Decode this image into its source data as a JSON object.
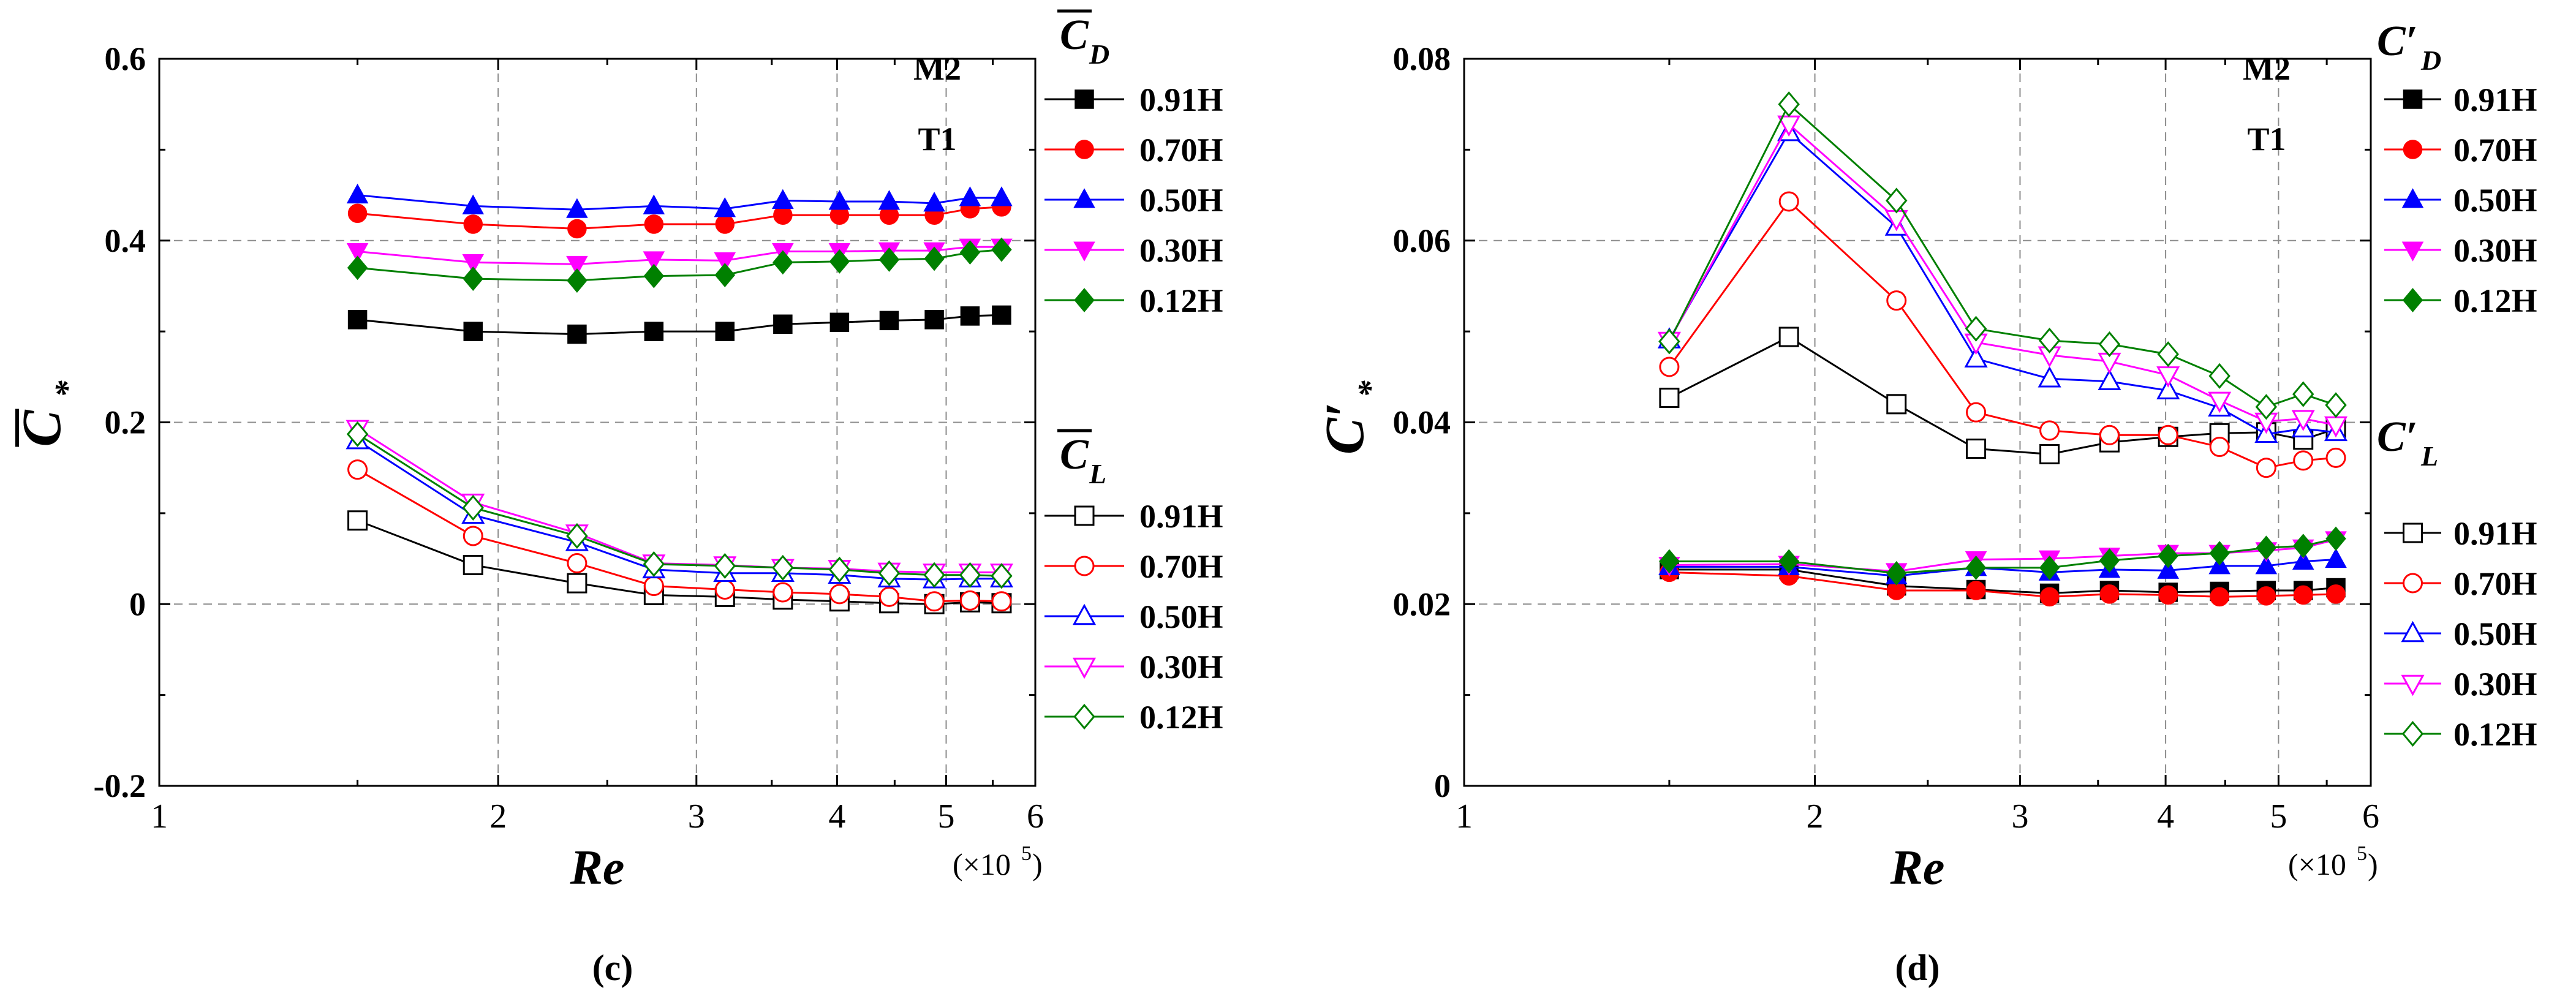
{
  "chart_data": [
    {
      "type": "line",
      "panel_label": "(c)",
      "xscale": "log",
      "xlim": [
        1,
        6
      ],
      "ylim": [
        -0.2,
        0.6
      ],
      "xticks": [
        1,
        2,
        3,
        4,
        5,
        6
      ],
      "xtick_labels": [
        "1",
        "2",
        "3",
        "4",
        "5",
        "6"
      ],
      "yticks": [
        -0.2,
        0,
        0.2,
        0.4,
        0.6
      ],
      "ytick_labels": [
        "-0.2",
        "0",
        "0.2",
        "0.4",
        "0.6"
      ],
      "xlabel": "Re",
      "x_unit": "(×10",
      "x_unit_exp": "5",
      "x_unit_close": ")",
      "ylabel": "C",
      "ylabel_sub": "*",
      "annotations": [
        "M2",
        "T1"
      ],
      "legend_groups": [
        {
          "title": "C",
          "title_sub": "D",
          "overbar": true,
          "prime": false
        },
        {
          "title": "C",
          "title_sub": "L",
          "overbar": true,
          "prime": false
        }
      ],
      "x": [
        1.5,
        1.9,
        2.35,
        2.75,
        3.18,
        3.58,
        4.02,
        4.45,
        4.88,
        5.25,
        5.6
      ],
      "series": [
        {
          "group": 0,
          "name": "0.91H",
          "color": "#000000",
          "marker": "square",
          "filled": true,
          "values": [
            0.313,
            0.3,
            0.297,
            0.3,
            0.3,
            0.308,
            0.31,
            0.312,
            0.313,
            0.317,
            0.318
          ]
        },
        {
          "group": 0,
          "name": "0.70H",
          "color": "#ff0000",
          "marker": "circle",
          "filled": true,
          "values": [
            0.43,
            0.418,
            0.413,
            0.418,
            0.418,
            0.428,
            0.428,
            0.428,
            0.428,
            0.435,
            0.437
          ]
        },
        {
          "group": 0,
          "name": "0.50H",
          "color": "#0000ff",
          "marker": "triangle-up",
          "filled": true,
          "values": [
            0.45,
            0.438,
            0.434,
            0.438,
            0.435,
            0.444,
            0.443,
            0.443,
            0.441,
            0.447,
            0.447
          ]
        },
        {
          "group": 0,
          "name": "0.30H",
          "color": "#ff00ff",
          "marker": "triangle-down",
          "filled": true,
          "values": [
            0.388,
            0.376,
            0.374,
            0.379,
            0.378,
            0.388,
            0.388,
            0.389,
            0.389,
            0.393,
            0.393
          ]
        },
        {
          "group": 0,
          "name": "0.12H",
          "color": "#008000",
          "marker": "diamond",
          "filled": true,
          "values": [
            0.37,
            0.358,
            0.356,
            0.361,
            0.362,
            0.376,
            0.377,
            0.379,
            0.38,
            0.387,
            0.39
          ]
        },
        {
          "group": 1,
          "name": "0.91H",
          "color": "#000000",
          "marker": "square",
          "filled": false,
          "values": [
            0.092,
            0.043,
            0.023,
            0.01,
            0.008,
            0.005,
            0.003,
            0.001,
            0.0,
            0.002,
            0.001
          ]
        },
        {
          "group": 1,
          "name": "0.70H",
          "color": "#ff0000",
          "marker": "circle",
          "filled": false,
          "values": [
            0.148,
            0.075,
            0.045,
            0.02,
            0.016,
            0.013,
            0.011,
            0.008,
            0.003,
            0.004,
            0.003
          ]
        },
        {
          "group": 1,
          "name": "0.50H",
          "color": "#0000ff",
          "marker": "triangle-up",
          "filled": false,
          "values": [
            0.18,
            0.098,
            0.068,
            0.038,
            0.034,
            0.034,
            0.032,
            0.028,
            0.027,
            0.028,
            0.028
          ]
        },
        {
          "group": 1,
          "name": "0.30H",
          "color": "#ff00ff",
          "marker": "triangle-down",
          "filled": false,
          "values": [
            0.193,
            0.112,
            0.078,
            0.045,
            0.043,
            0.04,
            0.039,
            0.036,
            0.035,
            0.035,
            0.035
          ]
        },
        {
          "group": 1,
          "name": "0.12H",
          "color": "#008000",
          "marker": "diamond",
          "filled": false,
          "values": [
            0.187,
            0.106,
            0.075,
            0.044,
            0.042,
            0.04,
            0.038,
            0.034,
            0.032,
            0.032,
            0.031
          ]
        }
      ]
    },
    {
      "type": "line",
      "panel_label": "(d)",
      "xscale": "log",
      "xlim": [
        1,
        6
      ],
      "ylim": [
        0,
        0.08
      ],
      "xticks": [
        1,
        2,
        3,
        4,
        5,
        6
      ],
      "xtick_labels": [
        "1",
        "2",
        "3",
        "4",
        "5",
        "6"
      ],
      "yticks": [
        0,
        0.02,
        0.04,
        0.06,
        0.08
      ],
      "ytick_labels": [
        "0",
        "0.02",
        "0.04",
        "0.06",
        "0.08"
      ],
      "xlabel": "Re",
      "x_unit": "(×10",
      "x_unit_exp": "5",
      "x_unit_close": ")",
      "ylabel": "C′",
      "ylabel_sub": "*",
      "annotations": [
        "M2",
        "T1"
      ],
      "legend_groups": [
        {
          "title": "C′",
          "title_sub": "D",
          "overbar": false,
          "prime": true
        },
        {
          "title": "C′",
          "title_sub": "L",
          "overbar": false,
          "prime": true
        }
      ],
      "x": [
        1.5,
        1.9,
        2.35,
        2.75,
        3.18,
        3.58,
        4.02,
        4.45,
        4.88,
        5.25,
        5.6
      ],
      "series": [
        {
          "group": 0,
          "name": "0.91H",
          "color": "#000000",
          "marker": "square",
          "filled": true,
          "values": [
            0.0238,
            0.0238,
            0.022,
            0.0216,
            0.0212,
            0.0215,
            0.0213,
            0.0214,
            0.0215,
            0.0215,
            0.0218
          ]
        },
        {
          "group": 0,
          "name": "0.70H",
          "color": "#ff0000",
          "marker": "circle",
          "filled": true,
          "values": [
            0.0235,
            0.0231,
            0.0215,
            0.0215,
            0.0208,
            0.0211,
            0.021,
            0.0208,
            0.0209,
            0.021,
            0.0211
          ]
        },
        {
          "group": 0,
          "name": "0.50H",
          "color": "#0000ff",
          "marker": "triangle-up",
          "filled": true,
          "values": [
            0.0241,
            0.0241,
            0.0231,
            0.024,
            0.0235,
            0.0238,
            0.0237,
            0.0242,
            0.0242,
            0.0247,
            0.0249
          ]
        },
        {
          "group": 0,
          "name": "0.30H",
          "color": "#ff00ff",
          "marker": "triangle-down",
          "filled": true,
          "values": [
            0.0243,
            0.0244,
            0.0236,
            0.0249,
            0.025,
            0.0253,
            0.0256,
            0.0256,
            0.0259,
            0.0262,
            0.0271
          ]
        },
        {
          "group": 0,
          "name": "0.12H",
          "color": "#008000",
          "marker": "diamond",
          "filled": true,
          "values": [
            0.0247,
            0.0247,
            0.0234,
            0.024,
            0.024,
            0.0248,
            0.0253,
            0.0256,
            0.0262,
            0.0264,
            0.0272
          ]
        },
        {
          "group": 1,
          "name": "0.91H",
          "color": "#000000",
          "marker": "square",
          "filled": false,
          "values": [
            0.0427,
            0.0494,
            0.042,
            0.0371,
            0.0365,
            0.0378,
            0.0384,
            0.0388,
            0.0389,
            0.0381,
            0.0393
          ]
        },
        {
          "group": 1,
          "name": "0.70H",
          "color": "#ff0000",
          "marker": "circle",
          "filled": false,
          "values": [
            0.0461,
            0.0643,
            0.0534,
            0.0411,
            0.0391,
            0.0386,
            0.0386,
            0.0373,
            0.035,
            0.0358,
            0.0361
          ]
        },
        {
          "group": 1,
          "name": "0.50H",
          "color": "#0000ff",
          "marker": "triangle-up",
          "filled": false,
          "values": [
            0.0491,
            0.0719,
            0.0615,
            0.047,
            0.0448,
            0.0445,
            0.0435,
            0.0416,
            0.0387,
            0.0393,
            0.0389
          ]
        },
        {
          "group": 1,
          "name": "0.30H",
          "color": "#ff00ff",
          "marker": "triangle-down",
          "filled": false,
          "values": [
            0.049,
            0.0728,
            0.0624,
            0.0488,
            0.0474,
            0.0467,
            0.0452,
            0.0424,
            0.0401,
            0.0404,
            0.0397
          ]
        },
        {
          "group": 1,
          "name": "0.12H",
          "color": "#008000",
          "marker": "diamond",
          "filled": false,
          "values": [
            0.0489,
            0.075,
            0.0644,
            0.0503,
            0.049,
            0.0486,
            0.0475,
            0.0451,
            0.0417,
            0.0431,
            0.0419
          ]
        }
      ]
    }
  ]
}
